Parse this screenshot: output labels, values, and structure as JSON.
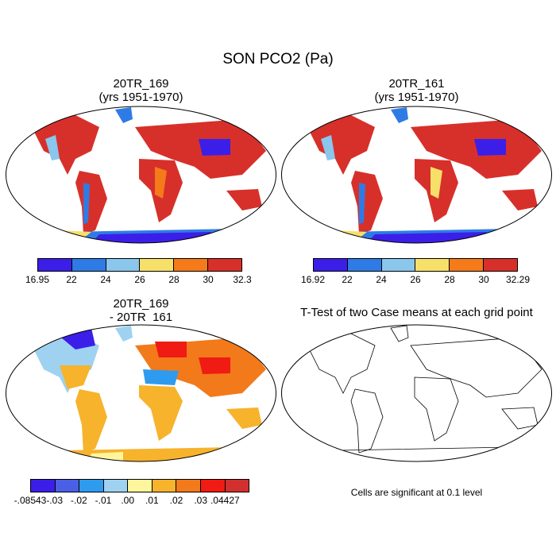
{
  "title": "SON PCO2 (Pa)",
  "panels": [
    {
      "title1": "20TR_169",
      "title2": "(yrs 1951-1970)"
    },
    {
      "title1": "20TR_161",
      "title2": "(yrs 1951-1970)"
    },
    {
      "title1": "20TR_169",
      "title2": "- 20TR_161"
    },
    {
      "title1": "T-Test of two Case means at each grid point",
      "title2": ""
    }
  ],
  "colorbar_a": {
    "colors": [
      "#3b1fe8",
      "#2f7be6",
      "#8bc6ec",
      "#f6e06a",
      "#f47a1a",
      "#d7302a"
    ],
    "labels": [
      "16.95",
      "22",
      "24",
      "26",
      "28",
      "30",
      "32.3"
    ]
  },
  "colorbar_b": {
    "colors": [
      "#3b1fe8",
      "#2f7be6",
      "#8bc6ec",
      "#f6e06a",
      "#f47a1a",
      "#d7302a"
    ],
    "labels": [
      "16.92",
      "22",
      "24",
      "26",
      "28",
      "30",
      "32.29"
    ]
  },
  "colorbar_diff": {
    "colors": [
      "#3b1fe8",
      "#4b5fe6",
      "#2f9bef",
      "#9fd2f0",
      "#fff59c",
      "#f6b32b",
      "#f27a1b",
      "#f01b12",
      "#d2302e"
    ],
    "labels": [
      "-.08543",
      "-.03",
      "-.02",
      "-.01",
      ".00",
      ".01",
      ".02",
      ".03",
      ".04427"
    ]
  },
  "footnote": "Cells are significant at 0.1 level"
}
